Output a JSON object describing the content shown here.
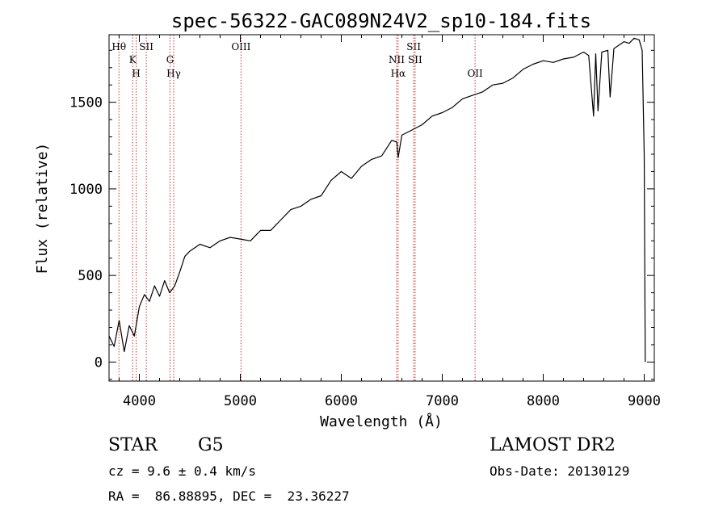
{
  "chart_data": {
    "type": "line",
    "title": "spec-56322-GAC089N24V2_sp10-184.fits",
    "xlabel": "Wavelength (Å)",
    "ylabel": "Flux (relative)",
    "xlim": [
      3700,
      9100
    ],
    "ylim": [
      -110,
      1890
    ],
    "xticks": [
      4000,
      5000,
      6000,
      7000,
      8000,
      9000
    ],
    "yticks": [
      0,
      500,
      1000,
      1500
    ],
    "series": [
      {
        "x": [
          3700,
          3750,
          3800,
          3850,
          3900,
          3950,
          4000,
          4050,
          4100,
          4150,
          4200,
          4250,
          4300,
          4350,
          4400,
          4450,
          4500,
          4600,
          4700,
          4800,
          4900,
          5000,
          5100,
          5200,
          5300,
          5400,
          5500,
          5600,
          5700,
          5800,
          5900,
          6000,
          6100,
          6200,
          6300,
          6400,
          6500,
          6550,
          6563,
          6600,
          6700,
          6800,
          6900,
          7000,
          7100,
          7200,
          7300,
          7400,
          7500,
          7600,
          7700,
          7800,
          7900,
          8000,
          8100,
          8200,
          8300,
          8400,
          8450,
          8498,
          8520,
          8542,
          8580,
          8640,
          8662,
          8700,
          8750,
          8800,
          8850,
          8900,
          8950,
          8980,
          9000,
          9010
        ],
        "y": [
          150,
          90,
          240,
          60,
          210,
          150,
          320,
          390,
          350,
          440,
          380,
          470,
          400,
          440,
          520,
          610,
          640,
          680,
          660,
          700,
          720,
          710,
          700,
          760,
          760,
          820,
          880,
          900,
          940,
          960,
          1050,
          1100,
          1060,
          1130,
          1170,
          1190,
          1280,
          1270,
          1180,
          1310,
          1340,
          1370,
          1420,
          1440,
          1470,
          1520,
          1540,
          1560,
          1600,
          1610,
          1640,
          1690,
          1720,
          1740,
          1730,
          1750,
          1760,
          1790,
          1770,
          1420,
          1780,
          1450,
          1790,
          1800,
          1530,
          1810,
          1830,
          1850,
          1840,
          1870,
          1860,
          1800,
          1200,
          0
        ]
      }
    ],
    "lines_top": [
      {
        "x": 3798,
        "label": "Hθ"
      },
      {
        "x": 3934,
        "label": "K"
      },
      {
        "x": 3969,
        "label": "H"
      },
      {
        "x": 4069,
        "label": "SII"
      },
      {
        "x": 4304,
        "label": "G"
      },
      {
        "x": 4340,
        "label": "Hγ"
      },
      {
        "x": 5007,
        "label": "OIII"
      },
      {
        "x": 6548,
        "label": "NII"
      },
      {
        "x": 6563,
        "label": "Hα"
      },
      {
        "x": 6717,
        "label": "SII"
      },
      {
        "x": 6731,
        "label": "SII"
      },
      {
        "x": 7325,
        "label": "OII"
      }
    ]
  },
  "info": {
    "object_class": "STAR",
    "subclass": "G5",
    "survey": "LAMOST DR2",
    "cz": "cz = 9.6 ± 0.4 km/s",
    "obs_date": "Obs-Date: 20130129",
    "radec": "RA =  86.88895, DEC =  23.36227"
  },
  "colors": {
    "spectrum": "#000000",
    "line_markers": "#cc3333",
    "background": "#ffffff"
  }
}
